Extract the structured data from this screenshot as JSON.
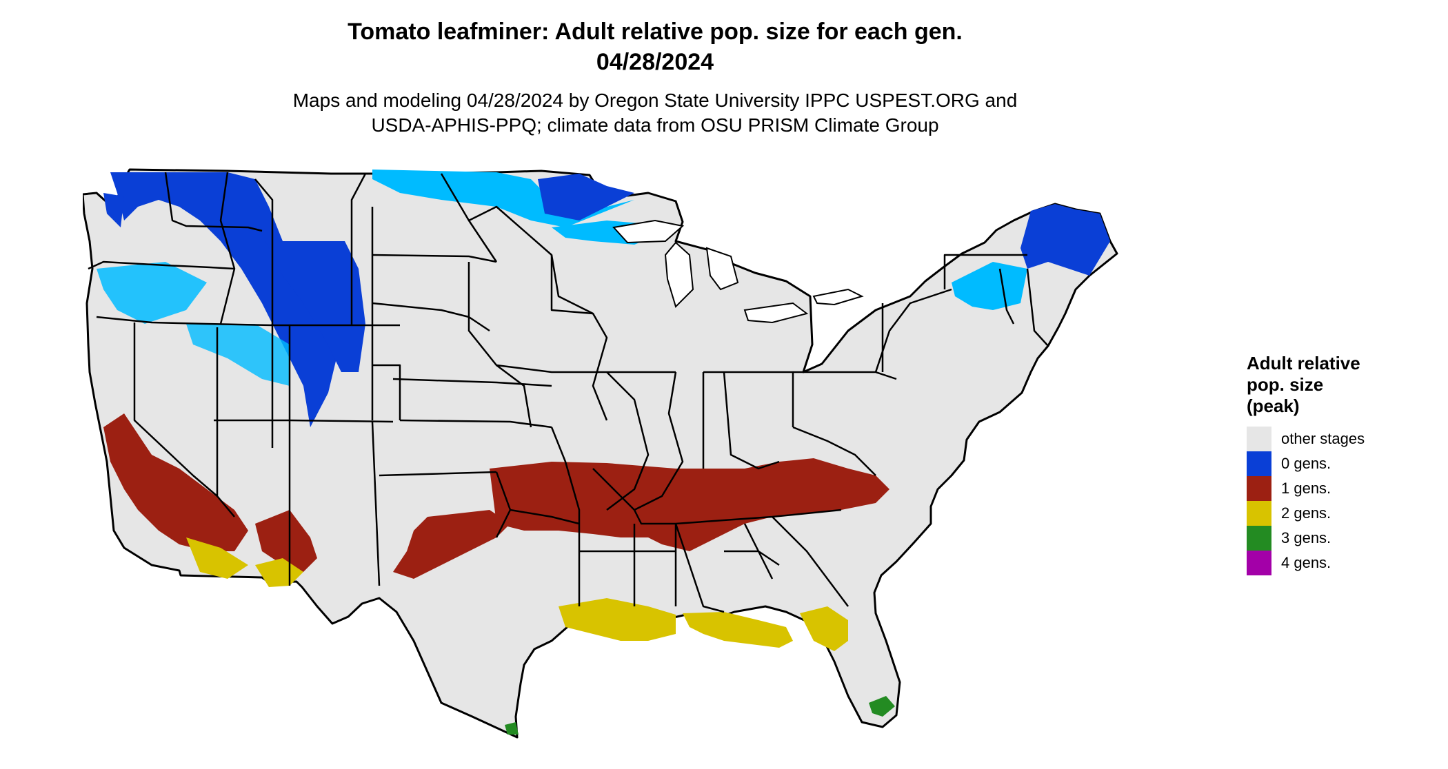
{
  "header": {
    "title_line1": "Tomato leafminer: Adult relative pop. size for each gen.",
    "title_line2": "04/28/2024",
    "subtitle_line1": "Maps and modeling 04/28/2024 by Oregon State University IPPC USPEST.ORG and",
    "subtitle_line2": "USDA-APHIS-PPQ; climate data from OSU PRISM Climate Group"
  },
  "legend": {
    "title_line1": "Adult relative",
    "title_line2": "pop. size",
    "title_line3": "(peak)",
    "items": [
      {
        "label": "other stages",
        "color": "#e6e6e6"
      },
      {
        "label": "0 gens.",
        "color": "#0a3fd6"
      },
      {
        "label": "1 gens.",
        "color": "#9c2012"
      },
      {
        "label": "2 gens.",
        "color": "#d8c300"
      },
      {
        "label": "3 gens.",
        "color": "#238b22"
      },
      {
        "label": "4 gens.",
        "color": "#a300a8"
      }
    ]
  },
  "map_colors": {
    "land": "#e6e6e6",
    "border": "#000000",
    "lake": "#ffffff",
    "light_blue": "#00bbff"
  }
}
